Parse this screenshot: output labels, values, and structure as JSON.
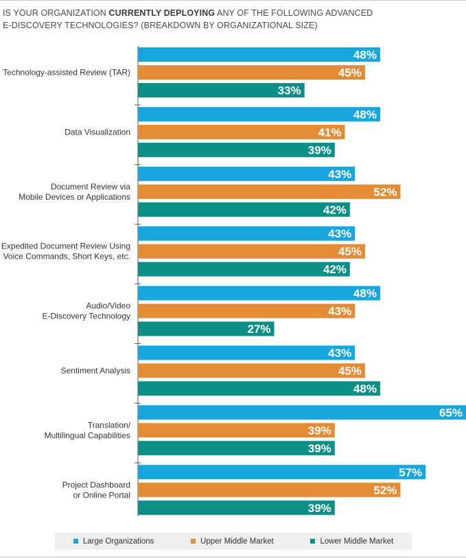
{
  "title": {
    "part1": "IS YOUR ORGANIZATION ",
    "bold": "CURRENTLY DEPLOYING",
    "part2": " ANY OF THE FOLLOWING ADVANCED",
    "line2": "E-DISCOVERY TECHNOLOGIES? (BREAKDOWN BY ORGANIZATIONAL SIZE)"
  },
  "colors": {
    "large": "#18a6df",
    "upper": "#e38c35",
    "lower": "#0d8f87"
  },
  "legend": [
    {
      "label": "Large Organizations",
      "color": "#18a6df"
    },
    {
      "label": "Upper Middle Market",
      "color": "#e38c35"
    },
    {
      "label": "Lower Middle Market",
      "color": "#0d8f87"
    }
  ],
  "chart_data": {
    "type": "bar",
    "orientation": "horizontal",
    "title": "IS YOUR ORGANIZATION CURRENTLY DEPLOYING ANY OF THE FOLLOWING ADVANCED E-DISCOVERY TECHNOLOGIES? (BREAKDOWN BY ORGANIZATIONAL SIZE)",
    "categories": [
      [
        "Technology-assisted Review (TAR)"
      ],
      [
        "Data Visualization"
      ],
      [
        "Document Review via",
        "Mobile Devices or Applications"
      ],
      [
        "Expedited Document Review Using",
        "Voice Commands, Short Keys, etc."
      ],
      [
        "Audio/Video",
        "E-Discovery Technology"
      ],
      [
        "Sentiment Analysis"
      ],
      [
        "Translation/",
        "Multilingual Capabilities"
      ],
      [
        "Project Dashboard",
        "or Online Portal"
      ]
    ],
    "series": [
      {
        "name": "Large Organizations",
        "values": [
          48,
          48,
          43,
          43,
          48,
          43,
          65,
          57
        ]
      },
      {
        "name": "Upper Middle Market",
        "values": [
          45,
          41,
          52,
          45,
          43,
          45,
          39,
          52
        ]
      },
      {
        "name": "Lower Middle Market",
        "values": [
          33,
          39,
          42,
          42,
          27,
          48,
          39,
          39
        ]
      }
    ],
    "value_suffix": "%",
    "xlim": [
      0,
      65
    ],
    "xlabel": "",
    "ylabel": "",
    "legend_position": "bottom"
  }
}
